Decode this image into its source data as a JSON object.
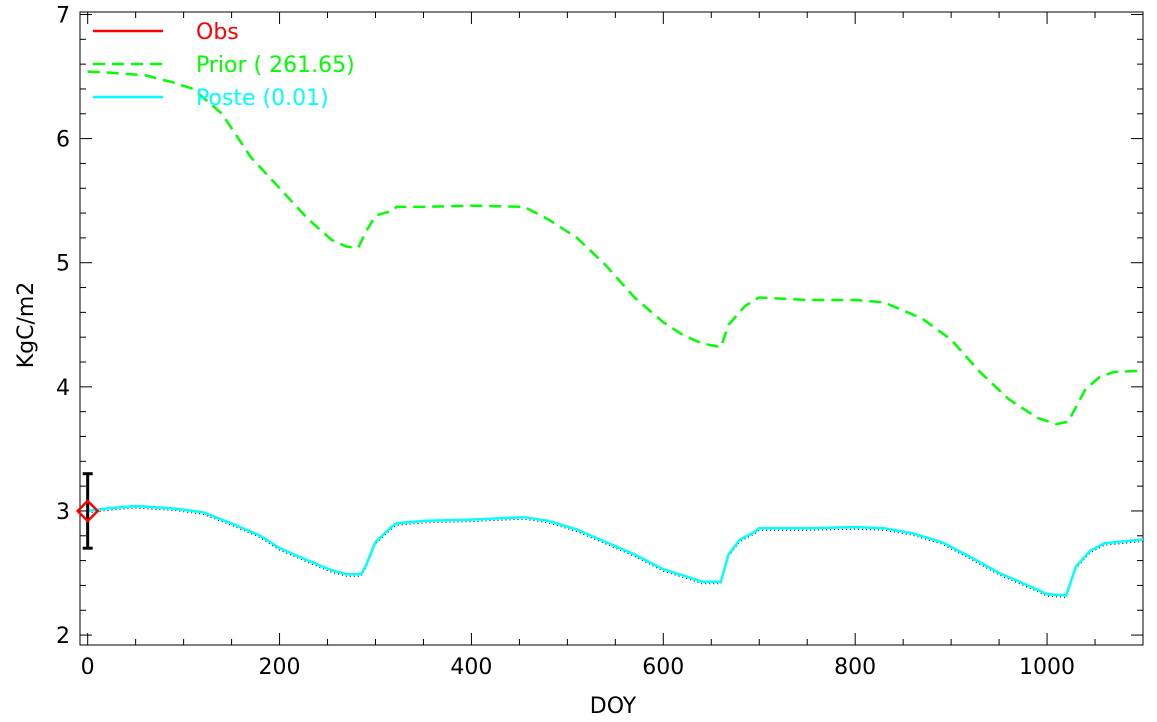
{
  "chart_data": {
    "type": "line",
    "title": "",
    "xlabel": "DOY",
    "ylabel": "KgC/m2",
    "xlim": [
      -8,
      1100
    ],
    "ylim": [
      1.92,
      7.02
    ],
    "x_ticks": [
      0,
      200,
      400,
      600,
      800,
      1000
    ],
    "y_ticks": [
      2,
      3,
      4,
      5,
      6,
      7
    ],
    "x_tick_labels": [
      "0",
      "200",
      "400",
      "600",
      "800",
      "1000"
    ],
    "y_tick_labels": [
      "2",
      "3",
      "4",
      "5",
      "6",
      "7"
    ],
    "grid": false,
    "legend_position": "top-left",
    "colors": {
      "obs": "#ff0000",
      "prior": "#00ff00",
      "poste": "#00ffff",
      "errorbar": "#000000"
    },
    "series": [
      {
        "name": "Obs",
        "style": "diamond-errorbar",
        "points": [
          {
            "x": 0,
            "y": 3.0,
            "yerr_low": 2.7,
            "yerr_high": 3.3
          }
        ]
      },
      {
        "name": "Prior ( 261.65)",
        "style": "dashed",
        "points": [
          [
            0,
            6.54
          ],
          [
            25,
            6.53
          ],
          [
            60,
            6.51
          ],
          [
            90,
            6.45
          ],
          [
            110,
            6.4
          ],
          [
            140,
            6.2
          ],
          [
            170,
            5.85
          ],
          [
            200,
            5.6
          ],
          [
            230,
            5.35
          ],
          [
            255,
            5.18
          ],
          [
            270,
            5.13
          ],
          [
            282,
            5.12
          ],
          [
            290,
            5.25
          ],
          [
            300,
            5.38
          ],
          [
            318,
            5.42
          ],
          [
            322,
            5.45
          ],
          [
            350,
            5.45
          ],
          [
            400,
            5.46
          ],
          [
            455,
            5.45
          ],
          [
            480,
            5.35
          ],
          [
            510,
            5.2
          ],
          [
            540,
            4.98
          ],
          [
            570,
            4.72
          ],
          [
            600,
            4.52
          ],
          [
            620,
            4.42
          ],
          [
            640,
            4.35
          ],
          [
            660,
            4.32
          ],
          [
            668,
            4.5
          ],
          [
            685,
            4.65
          ],
          [
            695,
            4.7
          ],
          [
            700,
            4.72
          ],
          [
            750,
            4.7
          ],
          [
            800,
            4.7
          ],
          [
            830,
            4.68
          ],
          [
            870,
            4.55
          ],
          [
            900,
            4.38
          ],
          [
            930,
            4.12
          ],
          [
            960,
            3.9
          ],
          [
            990,
            3.75
          ],
          [
            1010,
            3.7
          ],
          [
            1022,
            3.72
          ],
          [
            1040,
            3.98
          ],
          [
            1055,
            4.08
          ],
          [
            1070,
            4.12
          ],
          [
            1100,
            4.13
          ]
        ]
      },
      {
        "name": "Poste (0.01)",
        "style": "solid",
        "points": [
          [
            0,
            3.0
          ],
          [
            20,
            3.02
          ],
          [
            50,
            3.04
          ],
          [
            90,
            3.02
          ],
          [
            120,
            2.99
          ],
          [
            150,
            2.9
          ],
          [
            180,
            2.8
          ],
          [
            200,
            2.7
          ],
          [
            230,
            2.6
          ],
          [
            255,
            2.52
          ],
          [
            270,
            2.49
          ],
          [
            285,
            2.49
          ],
          [
            290,
            2.56
          ],
          [
            300,
            2.75
          ],
          [
            318,
            2.88
          ],
          [
            322,
            2.9
          ],
          [
            350,
            2.92
          ],
          [
            400,
            2.93
          ],
          [
            455,
            2.95
          ],
          [
            480,
            2.92
          ],
          [
            510,
            2.85
          ],
          [
            540,
            2.75
          ],
          [
            570,
            2.65
          ],
          [
            600,
            2.53
          ],
          [
            625,
            2.47
          ],
          [
            640,
            2.43
          ],
          [
            660,
            2.43
          ],
          [
            668,
            2.65
          ],
          [
            680,
            2.77
          ],
          [
            695,
            2.83
          ],
          [
            700,
            2.86
          ],
          [
            750,
            2.86
          ],
          [
            800,
            2.87
          ],
          [
            830,
            2.86
          ],
          [
            860,
            2.82
          ],
          [
            890,
            2.75
          ],
          [
            920,
            2.63
          ],
          [
            950,
            2.5
          ],
          [
            980,
            2.4
          ],
          [
            1000,
            2.33
          ],
          [
            1020,
            2.32
          ],
          [
            1030,
            2.55
          ],
          [
            1045,
            2.68
          ],
          [
            1060,
            2.74
          ],
          [
            1100,
            2.77
          ]
        ]
      }
    ]
  }
}
